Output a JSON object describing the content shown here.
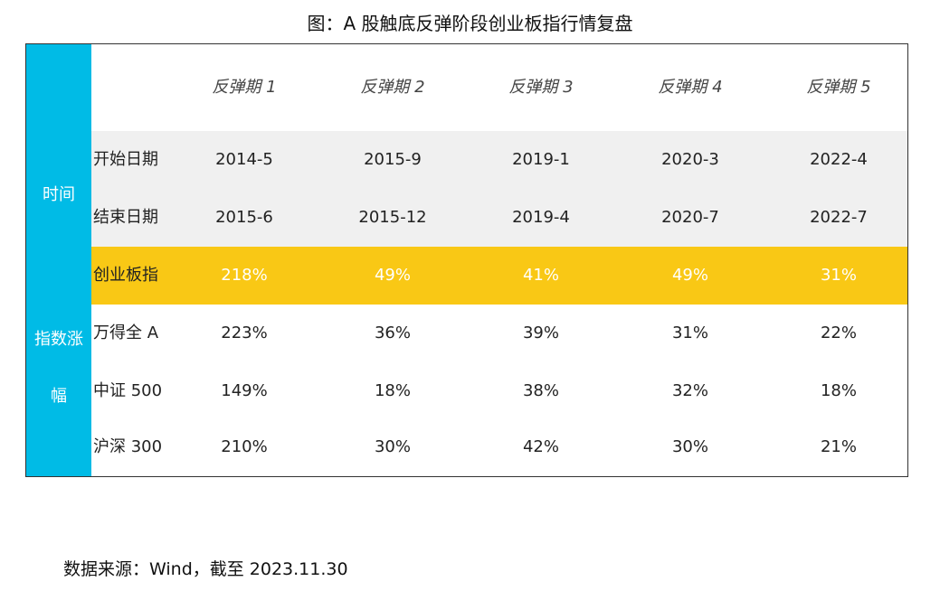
{
  "title": "图：A 股触底反弹阶段创业板指行情复盘",
  "table": {
    "side_labels": {
      "time": "时间",
      "gain_line1": "指数涨",
      "gain_line2": "幅"
    },
    "headers": [
      "反弹期 1",
      "反弹期 2",
      "反弹期 3",
      "反弹期 4",
      "反弹期 5"
    ],
    "rows": [
      {
        "label": "开始日期",
        "values": [
          "2014-5",
          "2015-9",
          "2019-1",
          "2020-3",
          "2022-4"
        ]
      },
      {
        "label": "结束日期",
        "values": [
          "2015-6",
          "2015-12",
          "2019-4",
          "2020-7",
          "2022-7"
        ]
      },
      {
        "label": "创业板指",
        "values": [
          "218%",
          "49%",
          "41%",
          "49%",
          "31%"
        ]
      },
      {
        "label": "万得全 A",
        "values": [
          "223%",
          "36%",
          "39%",
          "31%",
          "22%"
        ]
      },
      {
        "label": "中证 500",
        "values": [
          "149%",
          "18%",
          "38%",
          "32%",
          "18%"
        ]
      },
      {
        "label": "沪深 300",
        "values": [
          "210%",
          "30%",
          "42%",
          "30%",
          "21%"
        ]
      }
    ]
  },
  "colors": {
    "side_blue": "#00bbe6",
    "highlight_gold": "#f9c815",
    "row_gray": "#f0f0f0"
  },
  "footer": "数据来源：Wind，截至 2023.11.30"
}
